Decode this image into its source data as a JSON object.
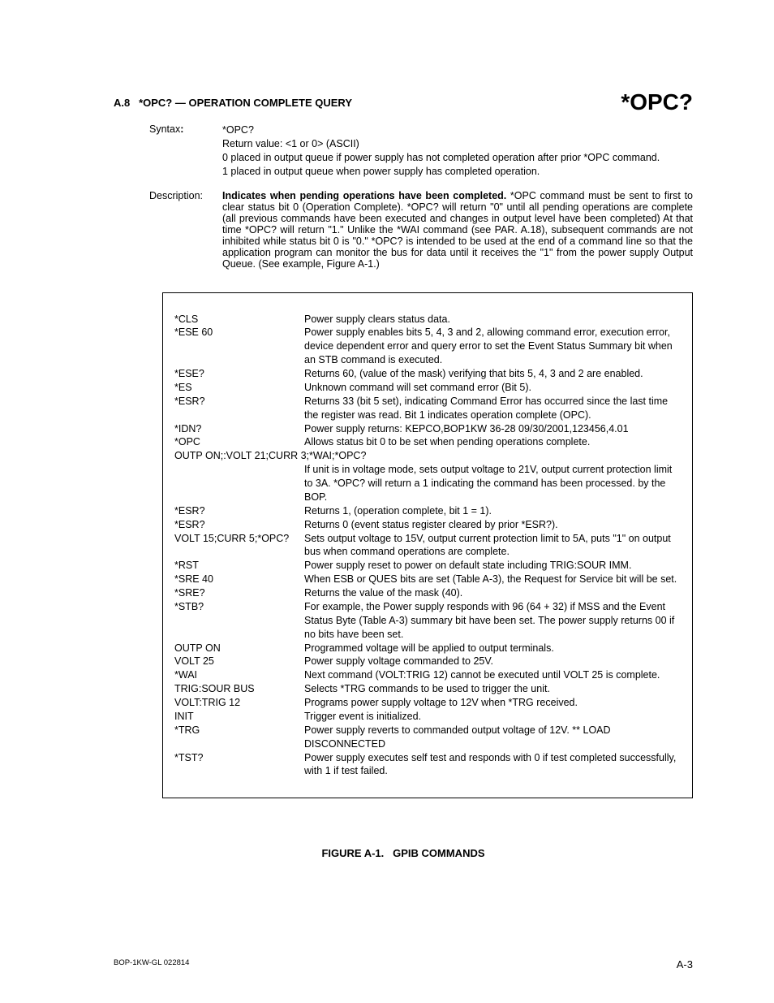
{
  "header": {
    "section_number": "A.8",
    "section_title": "*OPC? — OPERATION COMPLETE QUERY",
    "command_big": "*OPC?"
  },
  "syntax": {
    "label": "Syntax:",
    "command": "*OPC?",
    "return_line": "Return value: <1 or 0> (ASCII)",
    "explain_0": "0 placed in output queue if power supply has not completed operation after prior *OPC command.",
    "explain_1": "1 placed in output queue when power supply has completed operation."
  },
  "description": {
    "label": "Description:",
    "lead": "Indicates when pending operations have been completed.",
    "body": " *OPC command must be sent to first to clear status bit 0 (Operation Complete). *OPC? will return \"0\" until all pending operations are complete (all previous commands have been executed and changes in output level have been completed) At that time *OPC? will return \"1.\" Unlike the *WAI command (see PAR. A.18), subsequent commands are not inhibited while status bit 0 is \"0.\" *OPC? is intended to be used at the end of a command line so that the application program can monitor the bus for data until it receives the \"1\" from the power supply Output Queue. (See example, Figure A-1.)"
  },
  "figure": {
    "rows": [
      {
        "cmd": "*CLS",
        "desc": "Power supply clears status data."
      },
      {
        "cmd": "*ESE 60",
        "desc": "Power supply enables bits 5, 4, 3 and 2, allowing command error, execution error, device dependent error and query error to set the Event Status Summary bit when an STB command is executed."
      },
      {
        "cmd": "*ESE?",
        "desc": "Returns 60, (value of the mask) verifying that bits 5, 4, 3 and 2 are enabled."
      },
      {
        "cmd": "*ES",
        "desc": "Unknown command will set command error (Bit 5)."
      },
      {
        "cmd": "*ESR?",
        "desc": "Returns 33 (bit 5 set), indicating Command Error has occurred since the last time the register was read. Bit 1 indicates operation complete (OPC)."
      },
      {
        "cmd": "*IDN?",
        "desc": "Power supply returns: KEPCO,BOP1KW 36-28 09/30/2001,123456,4.01"
      },
      {
        "cmd": "*OPC",
        "desc": "Allows status bit 0 to be set when pending operations complete."
      },
      {
        "cmd": "OUTP ON;:VOLT 21;CURR 3;*WAI;*OPC?",
        "desc": "",
        "full": true
      },
      {
        "cmd": "",
        "desc": "If unit is in voltage mode, sets output voltage to 21V, output current protection limit to 3A. *OPC? will return a 1 indicating the command has been processed. by the BOP."
      },
      {
        "cmd": "*ESR?",
        "desc": "Returns 1, (operation complete, bit 1 = 1)."
      },
      {
        "cmd": "*ESR?",
        "desc": "Returns 0 (event status register cleared by prior *ESR?)."
      },
      {
        "cmd": "VOLT 15;CURR 5;*OPC?",
        "desc": "Sets output voltage to 15V, output current protection limit to 5A, puts \"1\" on output bus when command operations are complete.",
        "inline": true
      },
      {
        "cmd": "*RST",
        "desc": "Power supply reset to power on default state including TRIG:SOUR IMM."
      },
      {
        "cmd": "*SRE 40",
        "desc": "When ESB or QUES bits are set (Table A-3), the Request for Service bit will be set."
      },
      {
        "cmd": "*SRE?",
        "desc": "Returns the value of the mask (40)."
      },
      {
        "cmd": "*STB?",
        "desc": "For example, the Power supply responds with 96 (64 + 32) if MSS and the Event Status Byte (Table A-3) summary bit have been set. The power supply returns 00 if no bits have been set."
      },
      {
        "cmd": "OUTP ON",
        "desc": "Programmed voltage will be applied to output terminals."
      },
      {
        "cmd": "VOLT 25",
        "desc": "Power supply voltage commanded to 25V."
      },
      {
        "cmd": "*WAI",
        "desc": "Next command (VOLT:TRIG 12) cannot be executed until VOLT 25 is complete."
      },
      {
        "cmd": "TRIG:SOUR BUS",
        "desc": "Selects *TRG commands to be used to trigger the unit."
      },
      {
        "cmd": "VOLT:TRIG 12",
        "desc": "Programs power supply voltage to 12V when *TRG received."
      },
      {
        "cmd": "INIT",
        "desc": "Trigger event is initialized."
      },
      {
        "cmd": "*TRG",
        "desc": "Power supply reverts to commanded output voltage of 12V. ** LOAD DISCONNECTED"
      },
      {
        "cmd": "*TST?",
        "desc": "Power supply executes self test and responds with 0 if test completed successfully, with 1 if test failed."
      }
    ],
    "caption_prefix": "FIGURE A-1.",
    "caption_title": "GPIB COMMANDS"
  },
  "footer": {
    "left": "BOP-1KW-GL 022814",
    "right": "A-3"
  }
}
